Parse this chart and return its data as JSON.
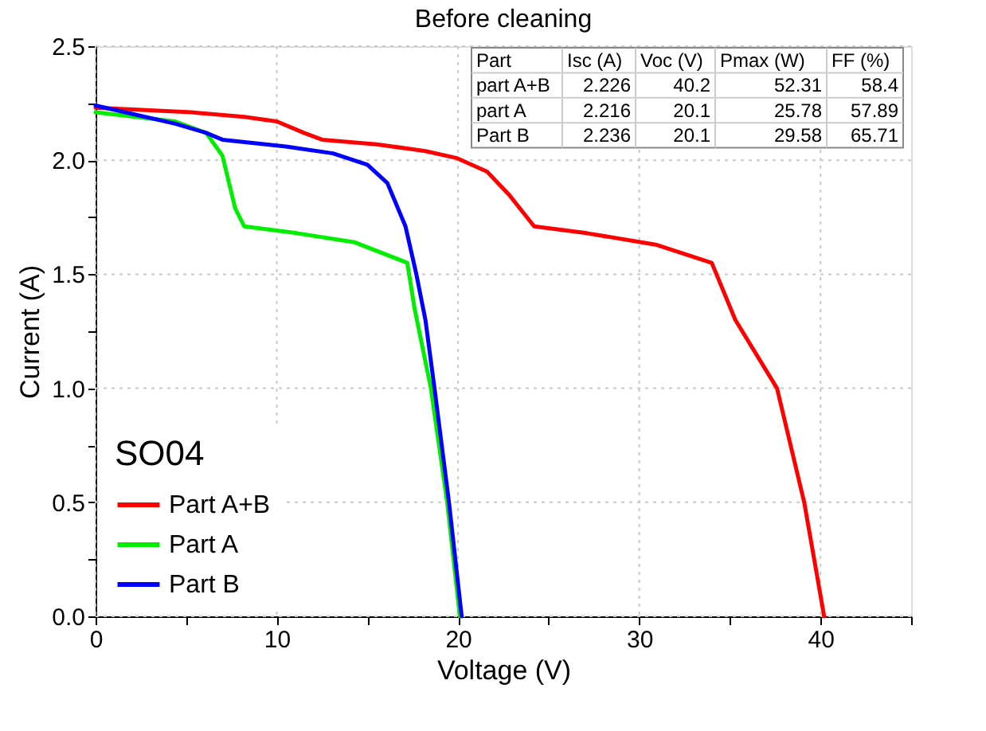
{
  "chart_data": {
    "type": "line",
    "title": "Before cleaning",
    "xlabel": "Voltage (V)",
    "ylabel": "Current (A)",
    "legend_title": "SO04",
    "xlim": [
      0,
      45
    ],
    "xticks": [
      0,
      {
        "value": 5,
        "label": null
      },
      10,
      {
        "value": 15,
        "label": null
      },
      20,
      {
        "value": 25,
        "label": null
      },
      30,
      {
        "value": 35,
        "label": null
      },
      40,
      {
        "value": 45,
        "label": null
      }
    ],
    "ylim": [
      0,
      2.5
    ],
    "yticks": [
      "0.0",
      {
        "value": 0.25,
        "label": null
      },
      {
        "value": 0.5,
        "label": "0.5"
      },
      {
        "value": 0.75,
        "label": null
      },
      {
        "value": 1.0,
        "label": "1.0"
      },
      {
        "value": 1.25,
        "label": null
      },
      {
        "value": 1.5,
        "label": "1.5"
      },
      {
        "value": 1.75,
        "label": null
      },
      {
        "value": 2.0,
        "label": "2.0"
      },
      {
        "value": 2.25,
        "label": null
      },
      {
        "value": 2.5,
        "label": "2.5"
      }
    ],
    "grid": true,
    "legend": "bottom left",
    "marker": "none",
    "line_style": "solid",
    "series": [
      {
        "name": "Part A+B",
        "color": "#ff0000",
        "x": [
          0,
          5.3,
          8.2,
          10,
          11.5,
          12.5,
          15.5,
          18.2,
          19.9,
          21.6,
          22.8,
          24.2,
          27.1,
          30.9,
          34,
          35.3,
          37.6,
          39.1,
          40.2
        ],
        "values": [
          2.23,
          2.21,
          2.19,
          2.17,
          2.12,
          2.09,
          2.07,
          2.04,
          2.01,
          1.95,
          1.85,
          1.71,
          1.68,
          1.63,
          1.55,
          1.3,
          1.0,
          0.5,
          0
        ]
      },
      {
        "name": "Part A",
        "color": "#00ee00",
        "x": [
          0,
          4.4,
          6.1,
          7,
          7.7,
          8.2,
          11.1,
          14.3,
          17.2,
          17.6,
          18.5,
          19.4,
          20.1
        ],
        "values": [
          2.21,
          2.17,
          2.12,
          2.02,
          1.79,
          1.71,
          1.68,
          1.64,
          1.55,
          1.35,
          1.0,
          0.5,
          0
        ]
      },
      {
        "name": "Part B",
        "color": "#0000ff",
        "x": [
          0,
          4.4,
          6.1,
          7,
          10.5,
          13.1,
          15,
          16.1,
          17.1,
          17.7,
          18.2,
          18.7,
          19.5,
          20.2
        ],
        "values": [
          2.24,
          2.16,
          2.12,
          2.09,
          2.06,
          2.03,
          1.98,
          1.9,
          1.71,
          1.5,
          1.3,
          1.0,
          0.5,
          0
        ]
      }
    ],
    "annotations": [
      "Part",
      "Isc (A)",
      "Voc (V)",
      "Pmax (W)",
      "FF (%)",
      "part A+B",
      "2.226",
      "40.2",
      "52.31",
      "58.4",
      "part A",
      "2.216",
      "20.1",
      "25.78",
      "57.89",
      "Part B",
      "2.236",
      "20.1",
      "29.58",
      "65.71"
    ]
  }
}
